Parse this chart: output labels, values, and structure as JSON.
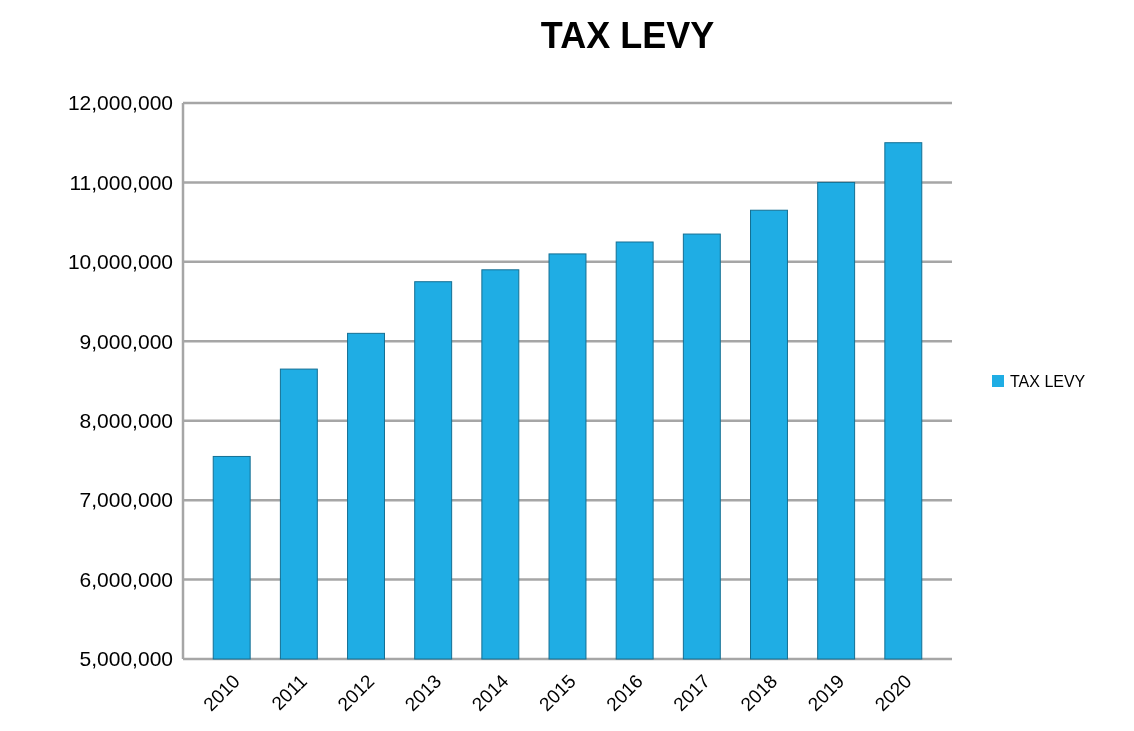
{
  "chart_data": {
    "type": "bar",
    "title": "TAX LEVY",
    "categories": [
      "2010",
      "2011",
      "2012",
      "2013",
      "2014",
      "2015",
      "2016",
      "2017",
      "2018",
      "2019",
      "2020"
    ],
    "series": [
      {
        "name": "TAX LEVY",
        "color": "#1fade4",
        "values": [
          7550000,
          8650000,
          9100000,
          9750000,
          9900000,
          10100000,
          10250000,
          10350000,
          10650000,
          11000000,
          11500000
        ]
      }
    ],
    "ylim": [
      5000000,
      12000000
    ],
    "yticks": [
      {
        "value": 5000000,
        "label": "5,000,000"
      },
      {
        "value": 6000000,
        "label": "6,000,000"
      },
      {
        "value": 7000000,
        "label": "7,000,000"
      },
      {
        "value": 8000000,
        "label": "8,000,000"
      },
      {
        "value": 9000000,
        "label": "9,000,000"
      },
      {
        "value": 10000000,
        "label": "10,000,000"
      },
      {
        "value": 11000000,
        "label": "11,000,000"
      },
      {
        "value": 12000000,
        "label": "12,000,000"
      }
    ],
    "grid": "y",
    "legend": "right"
  }
}
